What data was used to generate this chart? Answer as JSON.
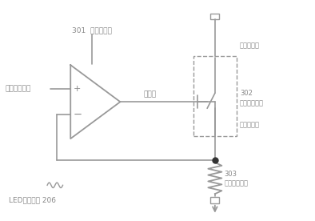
{
  "bg_color": "#ffffff",
  "line_color": "#999999",
  "text_color": "#888888",
  "dot_color": "#333333",
  "label_301": "301  运算放大器",
  "label_302": "302\n多路选择开关",
  "label_303": "303\n电流采样电阻",
  "label_206": "LED驱动电路 206",
  "label_input": "电流基准电压",
  "label_switch_in": "开关输入端",
  "label_switch_out": "开关输出端",
  "label_control": "控制端"
}
